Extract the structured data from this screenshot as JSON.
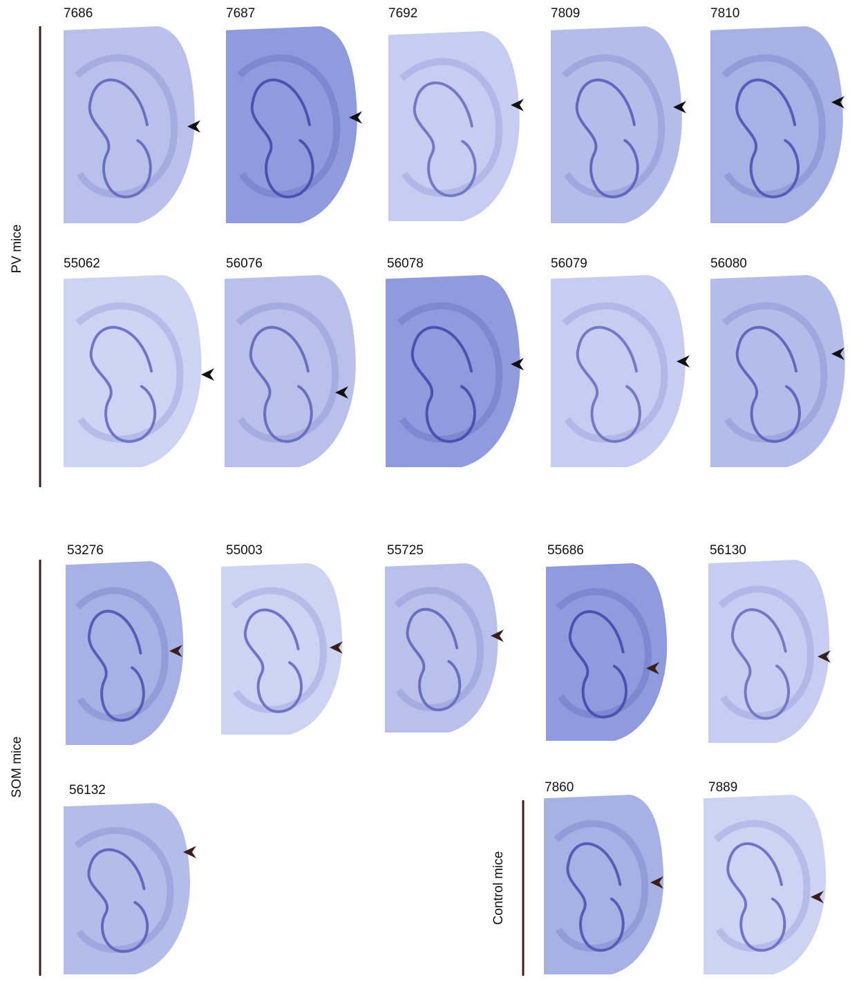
{
  "groups": [
    {
      "label": "PV mice",
      "panels": [
        {
          "id": "7686"
        },
        {
          "id": "7687"
        },
        {
          "id": "7692"
        },
        {
          "id": "7809"
        },
        {
          "id": "7810"
        },
        {
          "id": "55062"
        },
        {
          "id": "56076"
        },
        {
          "id": "56078"
        },
        {
          "id": "56079"
        },
        {
          "id": "56080"
        }
      ]
    },
    {
      "label": "SOM mice",
      "panels": [
        {
          "id": "53276"
        },
        {
          "id": "55003"
        },
        {
          "id": "55725"
        },
        {
          "id": "55686"
        },
        {
          "id": "56130"
        },
        {
          "id": "56132"
        }
      ]
    },
    {
      "label": "Control mice",
      "panels": [
        {
          "id": "7860"
        },
        {
          "id": "7889"
        }
      ]
    }
  ]
}
